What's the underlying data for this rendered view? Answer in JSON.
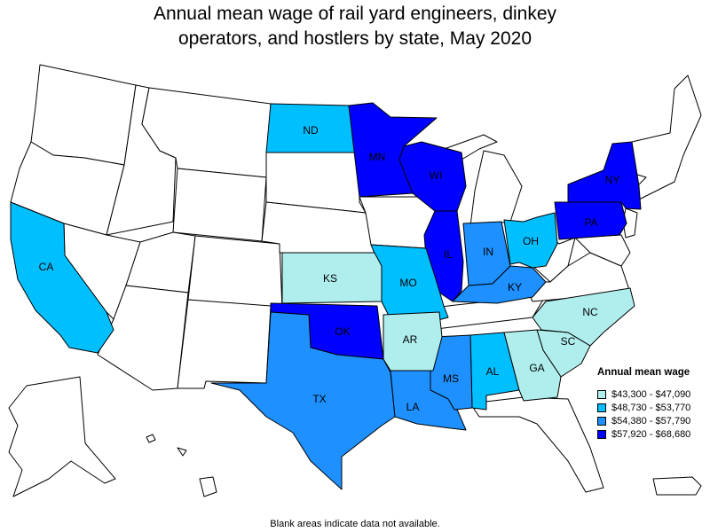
{
  "title_line1": "Annual mean wage of rail yard engineers, dinkey",
  "title_line2": "operators, and hostlers by state, May 2020",
  "legend": {
    "title": "Annual mean wage",
    "bins": [
      {
        "label": "$43,300 - $47,090",
        "color": "#b0eeee"
      },
      {
        "label": "$48,730 - $53,770",
        "color": "#00bfff"
      },
      {
        "label": "$54,380 - $57,790",
        "color": "#1e90ff"
      },
      {
        "label": "$57,920 - $68,680",
        "color": "#0000ff"
      }
    ]
  },
  "no_data_color": "#ffffff",
  "footnote": "Blank areas indicate data not available.",
  "states": [
    {
      "abbr": "ND",
      "bin": 1
    },
    {
      "abbr": "MN",
      "bin": 3
    },
    {
      "abbr": "WI",
      "bin": 3
    },
    {
      "abbr": "NY",
      "bin": 3
    },
    {
      "abbr": "PA",
      "bin": 3
    },
    {
      "abbr": "IL",
      "bin": 3
    },
    {
      "abbr": "OK",
      "bin": 3
    },
    {
      "abbr": "CA",
      "bin": 1
    },
    {
      "abbr": "MO",
      "bin": 1
    },
    {
      "abbr": "OH",
      "bin": 1
    },
    {
      "abbr": "AL",
      "bin": 1
    },
    {
      "abbr": "IN",
      "bin": 2
    },
    {
      "abbr": "KY",
      "bin": 2
    },
    {
      "abbr": "TX",
      "bin": 2
    },
    {
      "abbr": "LA",
      "bin": 2
    },
    {
      "abbr": "MS",
      "bin": 2
    },
    {
      "abbr": "KS",
      "bin": 0
    },
    {
      "abbr": "AR",
      "bin": 0
    },
    {
      "abbr": "NC",
      "bin": 0
    },
    {
      "abbr": "SC",
      "bin": 0
    },
    {
      "abbr": "GA",
      "bin": 0
    }
  ]
}
